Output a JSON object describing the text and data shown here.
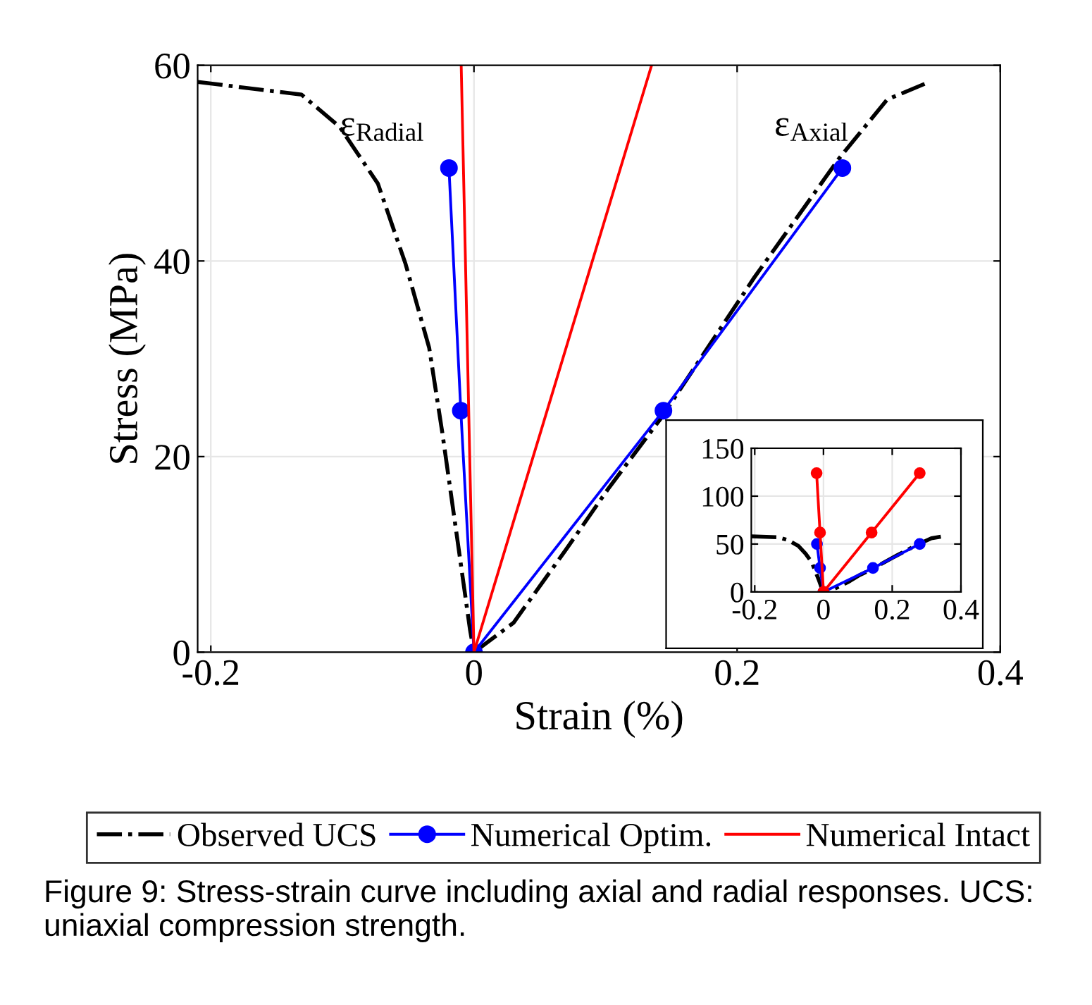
{
  "chart_data": [
    {
      "type": "line",
      "xlabel": "Strain (%)",
      "ylabel": "Stress (MPa)",
      "xlim": [
        -0.21,
        0.4
      ],
      "ylim": [
        0,
        60
      ],
      "xticks": [
        -0.2,
        0,
        0.2,
        0.4
      ],
      "yticks": [
        0,
        20,
        40,
        60
      ],
      "grid": true,
      "legend": "bottom",
      "annotations": [
        "ε$_{Radial}$",
        "ε$_{Axial}$",
        "Figure 9: Stress-strain curve including axial and radial responses. UCS: uniaxial compression strength."
      ],
      "series": [
        {
          "name": "Observed UCS",
          "color": "#000000",
          "line_style": "dashdot",
          "marker": "none",
          "x": [
            -0.21,
            -0.131,
            -0.102,
            -0.073,
            -0.052,
            -0.034,
            -0.024,
            -0.013,
            -0.003,
            0,
            0.03,
            0.07,
            0.102,
            0.142,
            0.213,
            0.277,
            0.314,
            0.346
          ],
          "values": [
            58.3,
            57.0,
            53.7,
            47.9,
            39.7,
            31.1,
            22.4,
            11.9,
            2.3,
            0,
            3,
            10.5,
            16.7,
            23.9,
            38.3,
            50.4,
            56.5,
            58.3
          ]
        },
        {
          "name": "Numerical Optim.",
          "color": "#0000ff",
          "line_style": "solid",
          "marker": "circle",
          "x": [
            -0.019,
            -0.01,
            0,
            0.144,
            0.28
          ],
          "values": [
            49.5,
            24.7,
            0,
            24.7,
            49.5
          ]
        },
        {
          "name": "Numerical Intact",
          "color": "#ff0000",
          "line_style": "solid",
          "marker": "none",
          "x": [
            -0.0097,
            0,
            0.135
          ],
          "values": [
            60,
            0,
            60
          ]
        }
      ]
    },
    {
      "type": "line",
      "xlim": [
        -0.21,
        0.4
      ],
      "ylim": [
        0,
        150
      ],
      "xticks": [
        -0.2,
        0,
        0.2,
        0.4
      ],
      "yticks": [
        0,
        50,
        100,
        150
      ],
      "grid": true,
      "series": [
        {
          "color": "#000000",
          "line_style": "dashdot",
          "marker": "none",
          "x": [
            -0.21,
            -0.131,
            -0.102,
            -0.073,
            -0.052,
            -0.034,
            -0.024,
            -0.013,
            -0.003,
            0,
            0.03,
            0.07,
            0.102,
            0.142,
            0.213,
            0.277,
            0.314,
            0.346
          ],
          "values": [
            58,
            57,
            54,
            48,
            40,
            31,
            22,
            12,
            2,
            0,
            3,
            10,
            17,
            24,
            38,
            50,
            56,
            58
          ]
        },
        {
          "color": "#0000ff",
          "line_style": "solid",
          "marker": "circle",
          "x": [
            -0.019,
            -0.01,
            0,
            0.144,
            0.28
          ],
          "values": [
            50,
            25,
            0,
            25,
            50
          ]
        },
        {
          "color": "#ff0000",
          "line_style": "solid",
          "marker": "circle",
          "x": [
            -0.02,
            -0.01,
            0,
            0.14,
            0.28
          ],
          "values": [
            124,
            62,
            0,
            62,
            124
          ]
        }
      ]
    }
  ]
}
